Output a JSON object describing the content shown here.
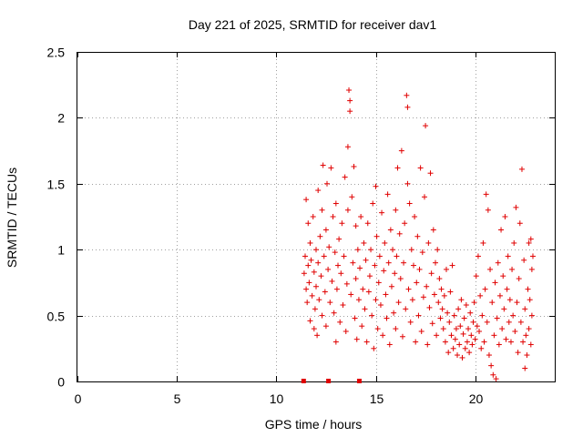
{
  "chart_data": {
    "type": "scatter",
    "title": "Day 221 of 2025, SRMTID for receiver dav1",
    "xlabel": "GPS time / hours",
    "ylabel": "SRMTID / TECUs",
    "xlim": [
      0,
      24
    ],
    "ylim": [
      0,
      2.5
    ],
    "xticks": [
      0,
      5,
      10,
      15,
      20
    ],
    "xtick_labels": [
      "0",
      "5",
      "10",
      "15",
      "20"
    ],
    "yticks": [
      0,
      0.5,
      1,
      1.5,
      2,
      2.5
    ],
    "ytick_labels": [
      "0",
      "0.5",
      "1",
      "1.5",
      "2",
      "2.5"
    ],
    "grid": true,
    "marker": "plus",
    "color": "#e00000",
    "series": [
      {
        "name": "SRMTID",
        "points": [
          [
            11.4,
            0.82
          ],
          [
            11.45,
            0.95
          ],
          [
            11.5,
            0.7
          ],
          [
            11.5,
            1.38
          ],
          [
            11.55,
            0.6
          ],
          [
            11.6,
            0.88
          ],
          [
            11.6,
            1.2
          ],
          [
            11.65,
            0.75
          ],
          [
            11.7,
            0.46
          ],
          [
            11.7,
            1.05
          ],
          [
            11.75,
            0.92
          ],
          [
            11.8,
            0.65
          ],
          [
            11.85,
            1.25
          ],
          [
            11.9,
            0.4
          ],
          [
            11.9,
            0.83
          ],
          [
            11.95,
            0.55
          ],
          [
            12.0,
            1.0
          ],
          [
            12.0,
            0.72
          ],
          [
            12.05,
            0.35
          ],
          [
            12.1,
            0.9
          ],
          [
            12.1,
            1.45
          ],
          [
            12.15,
            0.62
          ],
          [
            12.2,
            1.1
          ],
          [
            12.25,
            0.8
          ],
          [
            12.3,
            1.3
          ],
          [
            12.3,
            0.5
          ],
          [
            12.35,
            1.64
          ],
          [
            12.4,
            0.95
          ],
          [
            12.45,
            0.68
          ],
          [
            12.5,
            1.15
          ],
          [
            12.5,
            0.42
          ],
          [
            12.55,
            1.5
          ],
          [
            12.6,
            0.85
          ],
          [
            12.65,
            1.02
          ],
          [
            12.7,
            0.6
          ],
          [
            12.75,
            1.62
          ],
          [
            12.8,
            0.76
          ],
          [
            12.85,
            1.25
          ],
          [
            12.9,
            0.52
          ],
          [
            12.95,
            0.98
          ],
          [
            13.0,
            0.3
          ],
          [
            13.0,
            1.35
          ],
          [
            13.05,
            0.7
          ],
          [
            13.1,
            0.88
          ],
          [
            13.15,
            1.08
          ],
          [
            13.2,
            0.45
          ],
          [
            13.25,
            0.82
          ],
          [
            13.3,
            1.2
          ],
          [
            13.35,
            0.58
          ],
          [
            13.4,
            0.95
          ],
          [
            13.45,
            1.55
          ],
          [
            13.5,
            0.38
          ],
          [
            13.55,
            0.74
          ],
          [
            13.6,
            1.78
          ],
          [
            13.6,
            1.3
          ],
          [
            13.65,
            2.21
          ],
          [
            13.7,
            2.13
          ],
          [
            13.7,
            2.05
          ],
          [
            13.75,
            0.66
          ],
          [
            13.8,
            1.4
          ],
          [
            13.85,
            0.9
          ],
          [
            13.9,
            1.63
          ],
          [
            13.95,
            0.48
          ],
          [
            14.0,
            1.18
          ],
          [
            14.0,
            0.78
          ],
          [
            14.05,
            0.32
          ],
          [
            14.1,
            1.0
          ],
          [
            14.15,
            0.62
          ],
          [
            14.2,
            0.86
          ],
          [
            14.25,
            1.25
          ],
          [
            14.3,
            0.42
          ],
          [
            14.35,
            0.7
          ],
          [
            14.4,
            1.05
          ],
          [
            14.45,
            0.55
          ],
          [
            14.5,
            0.92
          ],
          [
            14.55,
            0.3
          ],
          [
            14.6,
            1.2
          ],
          [
            14.65,
            0.68
          ],
          [
            14.7,
            0.8
          ],
          [
            14.75,
            1.0
          ],
          [
            14.8,
            0.5
          ],
          [
            14.85,
            1.35
          ],
          [
            14.9,
            0.25
          ],
          [
            14.95,
            0.88
          ],
          [
            15.0,
            1.48
          ],
          [
            15.0,
            0.62
          ],
          [
            15.05,
            1.1
          ],
          [
            15.1,
            0.4
          ],
          [
            15.15,
            0.75
          ],
          [
            15.2,
            0.95
          ],
          [
            15.25,
            0.58
          ],
          [
            15.3,
            1.28
          ],
          [
            15.35,
            0.35
          ],
          [
            15.4,
            0.84
          ],
          [
            15.45,
            1.05
          ],
          [
            15.5,
            0.66
          ],
          [
            15.55,
            0.48
          ],
          [
            15.6,
            1.42
          ],
          [
            15.65,
            0.9
          ],
          [
            15.7,
            0.28
          ],
          [
            15.75,
            1.15
          ],
          [
            15.8,
            0.72
          ],
          [
            15.85,
            1.0
          ],
          [
            15.9,
            0.52
          ],
          [
            15.95,
            0.82
          ],
          [
            16.0,
            1.3
          ],
          [
            16.0,
            0.4
          ],
          [
            16.05,
            0.95
          ],
          [
            16.1,
            1.62
          ],
          [
            16.15,
            0.6
          ],
          [
            16.2,
            1.12
          ],
          [
            16.25,
            0.78
          ],
          [
            16.3,
            1.75
          ],
          [
            16.35,
            0.34
          ],
          [
            16.4,
            0.9
          ],
          [
            16.45,
            1.2
          ],
          [
            16.5,
            0.55
          ],
          [
            16.55,
            2.17
          ],
          [
            16.6,
            2.08
          ],
          [
            16.6,
            1.5
          ],
          [
            16.65,
            0.7
          ],
          [
            16.7,
            1.35
          ],
          [
            16.75,
            0.45
          ],
          [
            16.8,
            1.0
          ],
          [
            16.85,
            0.62
          ],
          [
            16.9,
            0.88
          ],
          [
            16.95,
            1.25
          ],
          [
            17.0,
            0.3
          ],
          [
            17.05,
            0.75
          ],
          [
            17.1,
            1.1
          ],
          [
            17.15,
            0.5
          ],
          [
            17.2,
            0.85
          ],
          [
            17.25,
            1.62
          ],
          [
            17.3,
            0.38
          ],
          [
            17.35,
            0.98
          ],
          [
            17.4,
            0.64
          ],
          [
            17.45,
            1.4
          ],
          [
            17.5,
            1.94
          ],
          [
            17.55,
            0.72
          ],
          [
            17.6,
            0.28
          ],
          [
            17.65,
            1.05
          ],
          [
            17.7,
            0.56
          ],
          [
            17.75,
            1.58
          ],
          [
            17.8,
            0.82
          ],
          [
            17.85,
            0.44
          ],
          [
            17.9,
            1.15
          ],
          [
            17.95,
            0.66
          ],
          [
            18.0,
            0.9
          ],
          [
            18.05,
            0.35
          ],
          [
            18.1,
            1.0
          ],
          [
            18.15,
            0.6
          ],
          [
            18.2,
            0.78
          ],
          [
            18.25,
            0.48
          ],
          [
            18.3,
            0.7
          ],
          [
            18.35,
            0.55
          ],
          [
            18.4,
            0.4
          ],
          [
            18.45,
            0.65
          ],
          [
            18.5,
            0.3
          ],
          [
            18.55,
            0.85
          ],
          [
            18.6,
            0.52
          ],
          [
            18.65,
            0.22
          ],
          [
            18.7,
            0.45
          ],
          [
            18.75,
            0.68
          ],
          [
            18.8,
            0.35
          ],
          [
            18.85,
            0.88
          ],
          [
            18.9,
            0.25
          ],
          [
            18.95,
            0.5
          ],
          [
            19.0,
            0.32
          ],
          [
            19.05,
            0.4
          ],
          [
            19.1,
            0.2
          ],
          [
            19.15,
            0.55
          ],
          [
            19.2,
            0.28
          ],
          [
            19.25,
            0.42
          ],
          [
            19.3,
            0.62
          ],
          [
            19.35,
            0.18
          ],
          [
            19.4,
            0.36
          ],
          [
            19.45,
            0.48
          ],
          [
            19.5,
            0.25
          ],
          [
            19.55,
            0.58
          ],
          [
            19.6,
            0.3
          ],
          [
            19.65,
            0.4
          ],
          [
            19.7,
            0.22
          ],
          [
            19.75,
            0.52
          ],
          [
            19.8,
            0.35
          ],
          [
            19.85,
            0.28
          ],
          [
            19.9,
            0.45
          ],
          [
            19.95,
            0.6
          ],
          [
            20.0,
            0.32
          ],
          [
            20.05,
            0.8
          ],
          [
            20.1,
            0.42
          ],
          [
            20.15,
            0.95
          ],
          [
            20.2,
            0.38
          ],
          [
            20.25,
            0.65
          ],
          [
            20.3,
            0.25
          ],
          [
            20.35,
            0.5
          ],
          [
            20.4,
            1.05
          ],
          [
            20.45,
            0.3
          ],
          [
            20.5,
            0.7
          ],
          [
            20.55,
            1.42
          ],
          [
            20.6,
            0.45
          ],
          [
            20.65,
            1.3
          ],
          [
            20.7,
            0.2
          ],
          [
            20.75,
            0.85
          ],
          [
            20.8,
            0.12
          ],
          [
            20.85,
            0.6
          ],
          [
            20.9,
            0.05
          ],
          [
            20.95,
            0.35
          ],
          [
            21.0,
            0.75
          ],
          [
            21.05,
            0.02
          ],
          [
            21.1,
            0.48
          ],
          [
            21.15,
            0.9
          ],
          [
            21.2,
            0.28
          ],
          [
            21.25,
            0.65
          ],
          [
            21.3,
            1.15
          ],
          [
            21.35,
            0.4
          ],
          [
            21.4,
            0.8
          ],
          [
            21.45,
            0.55
          ],
          [
            21.5,
            1.25
          ],
          [
            21.55,
            0.32
          ],
          [
            21.6,
            0.7
          ],
          [
            21.65,
            0.95
          ],
          [
            21.7,
            0.45
          ],
          [
            21.75,
            0.62
          ],
          [
            21.8,
            0.3
          ],
          [
            21.85,
            0.85
          ],
          [
            21.9,
            0.5
          ],
          [
            21.95,
            1.05
          ],
          [
            22.0,
            0.38
          ],
          [
            22.05,
            1.32
          ],
          [
            22.1,
            0.6
          ],
          [
            22.15,
            0.22
          ],
          [
            22.2,
            0.78
          ],
          [
            22.25,
            1.2
          ],
          [
            22.3,
            0.45
          ],
          [
            22.35,
            1.61
          ],
          [
            22.4,
            0.3
          ],
          [
            22.45,
            0.92
          ],
          [
            22.5,
            0.1
          ],
          [
            22.5,
            0.55
          ],
          [
            22.55,
            0.35
          ],
          [
            22.6,
            0.2
          ],
          [
            22.65,
            0.7
          ],
          [
            22.7,
            1.05
          ],
          [
            22.7,
            0.4
          ],
          [
            22.75,
            0.62
          ],
          [
            22.8,
            1.08
          ],
          [
            22.8,
            0.28
          ],
          [
            22.85,
            0.85
          ],
          [
            22.85,
            0.5
          ],
          [
            22.9,
            0.95
          ]
        ]
      }
    ],
    "gap_markers": [
      11.35,
      12.6,
      14.15
    ]
  }
}
